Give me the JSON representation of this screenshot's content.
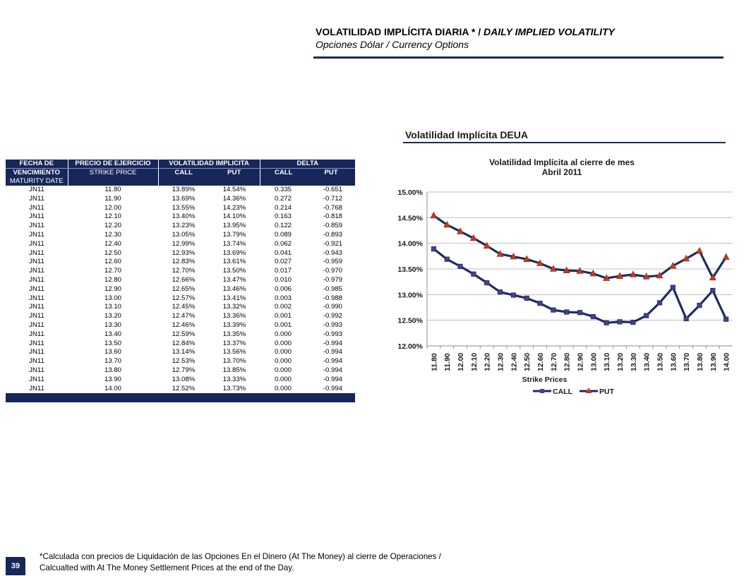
{
  "header": {
    "title_es": "VOLATILIDAD IMPLÍCITA DIARIA * / ",
    "title_en": "DAILY IMPLIED VOLATILITY",
    "subtitle": "Opciones Dólar / Currency Options"
  },
  "chart_section_title": "Volatilidad Implícita DEUA",
  "table": {
    "headers": {
      "date_1": "FECHA DE",
      "date_2": "VENCIMIENTO",
      "date_3": "MATURITY DATE",
      "strike_1": "PRECIO DE EJERCICIO",
      "strike_2": "STRIKE PRICE",
      "vol": "VOLATILIDAD IMPLICITA",
      "vol_call": "CALL",
      "vol_put": "PUT",
      "delta": "DELTA",
      "delta_call": "CALL",
      "delta_put": "PUT"
    },
    "rows": [
      [
        "JN11",
        "11.80",
        "13.89%",
        "14.54%",
        "0.335",
        "-0.651"
      ],
      [
        "JN11",
        "11.90",
        "13.69%",
        "14.36%",
        "0.272",
        "-0.712"
      ],
      [
        "JN11",
        "12.00",
        "13.55%",
        "14.23%",
        "0.214",
        "-0.768"
      ],
      [
        "JN11",
        "12.10",
        "13.40%",
        "14.10%",
        "0.163",
        "-0.818"
      ],
      [
        "JN11",
        "12.20",
        "13.23%",
        "13.95%",
        "0.122",
        "-0.859"
      ],
      [
        "JN11",
        "12.30",
        "13.05%",
        "13.79%",
        "0.089",
        "-0.893"
      ],
      [
        "JN11",
        "12.40",
        "12.99%",
        "13.74%",
        "0.062",
        "-0.921"
      ],
      [
        "JN11",
        "12.50",
        "12.93%",
        "13.69%",
        "0.041",
        "-0.943"
      ],
      [
        "JN11",
        "12.60",
        "12.83%",
        "13.61%",
        "0.027",
        "-0.959"
      ],
      [
        "JN11",
        "12.70",
        "12.70%",
        "13.50%",
        "0.017",
        "-0.970"
      ],
      [
        "JN11",
        "12.80",
        "12.66%",
        "13.47%",
        "0.010",
        "-0.979"
      ],
      [
        "JN11",
        "12.90",
        "12.65%",
        "13.46%",
        "0.006",
        "-0.985"
      ],
      [
        "JN11",
        "13.00",
        "12.57%",
        "13.41%",
        "0.003",
        "-0.988"
      ],
      [
        "JN11",
        "13.10",
        "12.45%",
        "13.32%",
        "0.002",
        "-0.990"
      ],
      [
        "JN11",
        "13.20",
        "12.47%",
        "13.36%",
        "0.001",
        "-0.992"
      ],
      [
        "JN11",
        "13.30",
        "12.46%",
        "13.39%",
        "0.001",
        "-0.993"
      ],
      [
        "JN11",
        "13.40",
        "12.59%",
        "13.35%",
        "0.000",
        "-0.993"
      ],
      [
        "JN11",
        "13.50",
        "12.84%",
        "13.37%",
        "0.000",
        "-0.994"
      ],
      [
        "JN11",
        "13.60",
        "13.14%",
        "13.56%",
        "0.000",
        "-0.994"
      ],
      [
        "JN11",
        "13.70",
        "12.53%",
        "13.70%",
        "0.000",
        "-0.994"
      ],
      [
        "JN11",
        "13.80",
        "12.79%",
        "13.85%",
        "0.000",
        "-0.994"
      ],
      [
        "JN11",
        "13.90",
        "13.08%",
        "13.33%",
        "0.000",
        "-0.994"
      ],
      [
        "JN11",
        "14.00",
        "12.52%",
        "13.73%",
        "0.000",
        "-0.994"
      ]
    ]
  },
  "chart_data": {
    "type": "line",
    "title": "Volatilidad Implícita  al cierre de mes",
    "subtitle": "Abril 2011",
    "xlabel": "Strike Prices",
    "ylabel": "",
    "categories": [
      "11.80",
      "11.90",
      "12.00",
      "12.10",
      "12.20",
      "12.30",
      "12.40",
      "12.50",
      "12.60",
      "12.70",
      "12.80",
      "12.90",
      "13.00",
      "13.10",
      "13.20",
      "13.30",
      "13.40",
      "13.50",
      "13.60",
      "13.70",
      "13.80",
      "13.90",
      "14.00"
    ],
    "series": [
      {
        "name": "CALL",
        "color": "#1a2e5f",
        "marker": "square",
        "marker_color": "#4b3d8f",
        "values": [
          13.89,
          13.69,
          13.55,
          13.4,
          13.23,
          13.05,
          12.99,
          12.93,
          12.83,
          12.7,
          12.66,
          12.65,
          12.57,
          12.45,
          12.47,
          12.46,
          12.59,
          12.84,
          13.14,
          12.53,
          12.79,
          13.08,
          12.52
        ]
      },
      {
        "name": "PUT",
        "color": "#1a2e5f",
        "marker": "triangle",
        "marker_color": "#c8381d",
        "values": [
          14.54,
          14.36,
          14.23,
          14.1,
          13.95,
          13.79,
          13.74,
          13.69,
          13.61,
          13.5,
          13.47,
          13.46,
          13.41,
          13.32,
          13.36,
          13.39,
          13.35,
          13.37,
          13.56,
          13.7,
          13.85,
          13.33,
          13.73
        ]
      }
    ],
    "ylim": [
      12.0,
      15.0
    ],
    "yticks": [
      "12.00%",
      "12.50%",
      "13.00%",
      "13.50%",
      "14.00%",
      "14.50%",
      "15.00%"
    ],
    "grid": true,
    "legend_position": "bottom"
  },
  "footnote": {
    "line1": "*Calculada con precios de Liquidación de las Opciones En el Dinero (At The Money) al cierre de Operaciones /",
    "line2": "Calcualted with At The Money Settlement Prices at the end of the Day."
  },
  "page_number": "39"
}
